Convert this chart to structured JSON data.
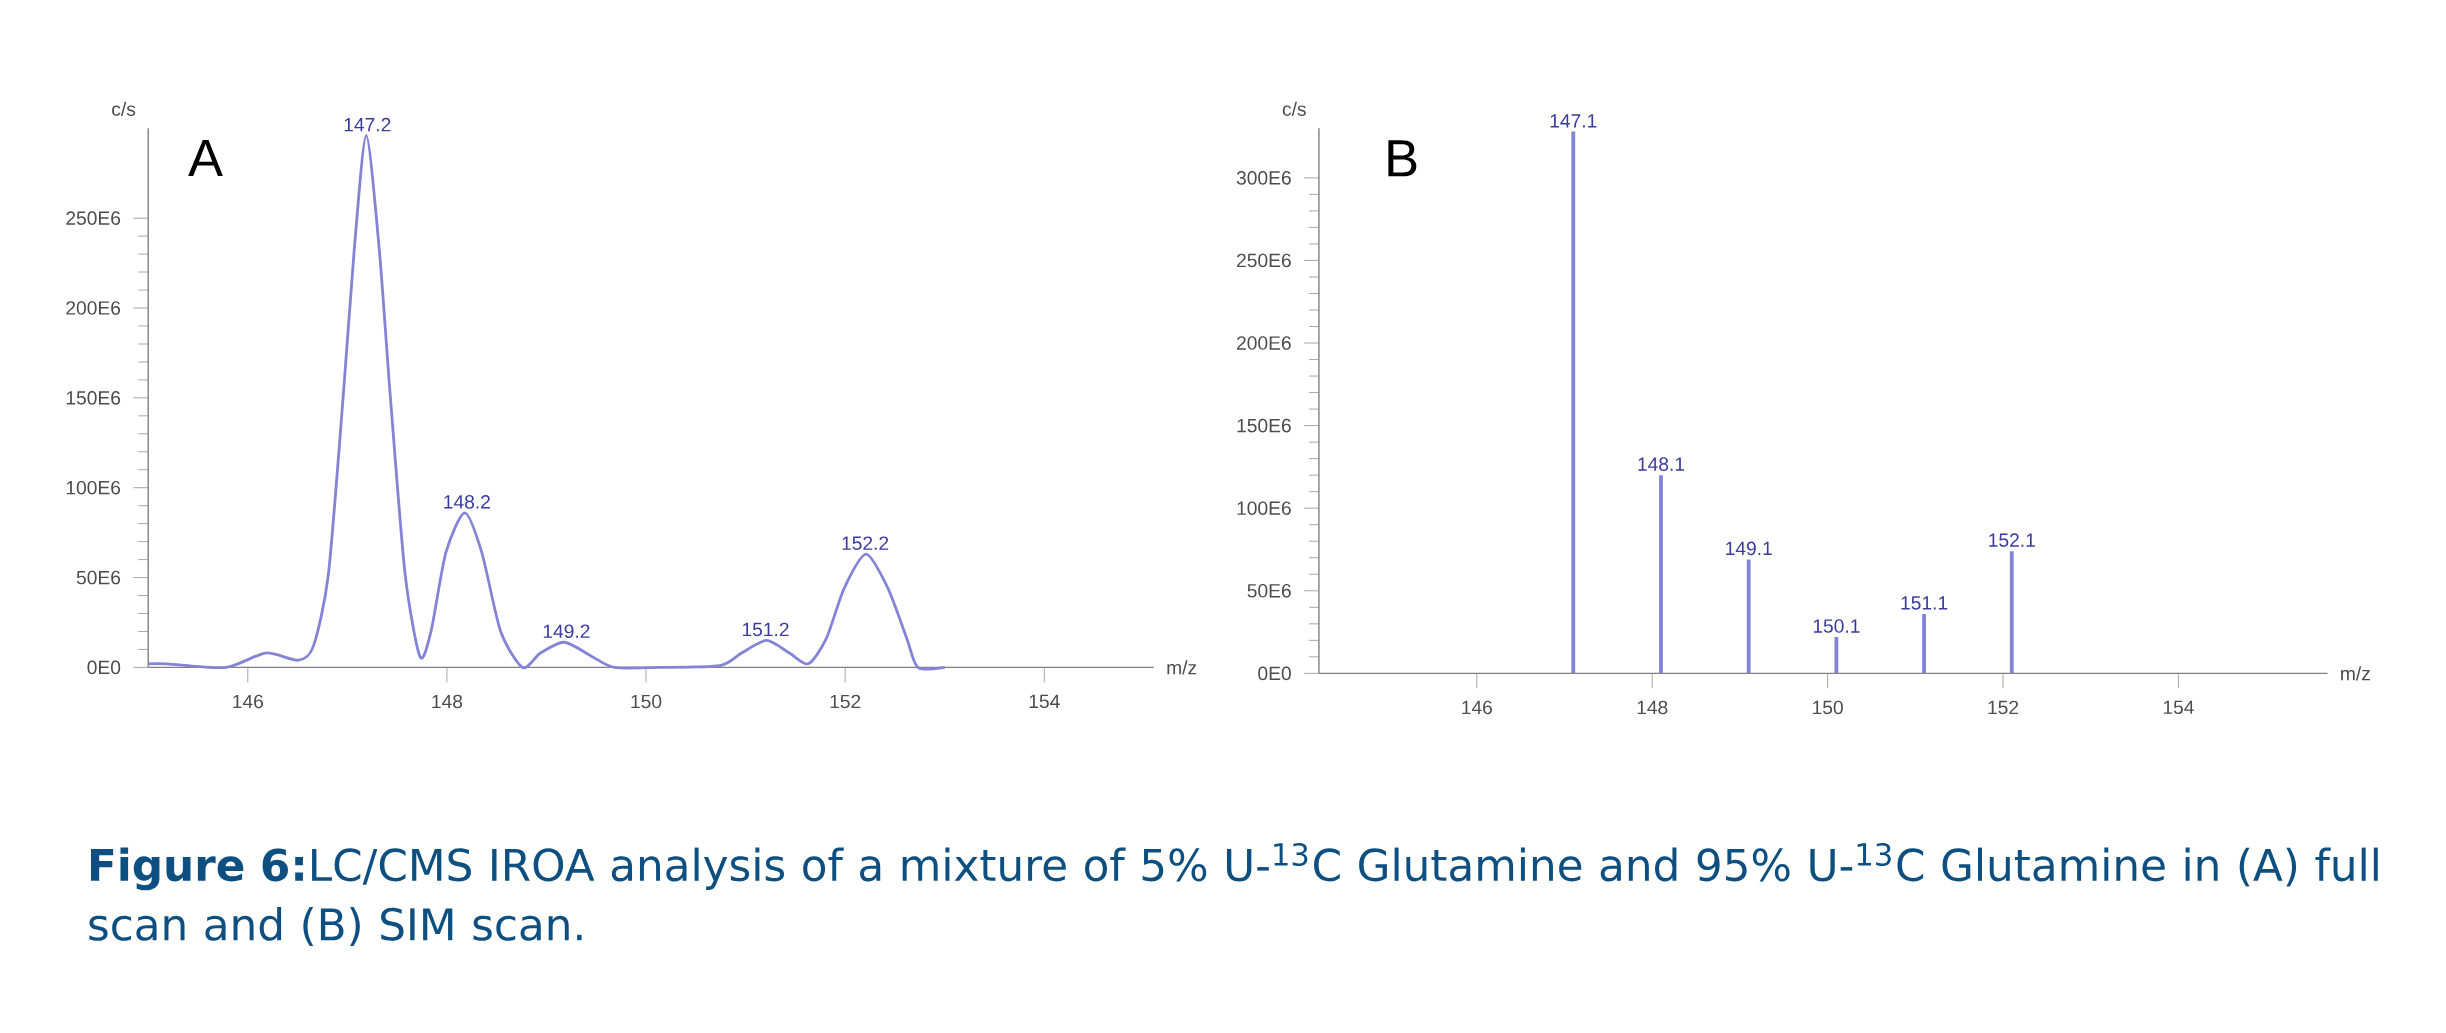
{
  "chart_data": [
    {
      "type": "line",
      "title": "A",
      "xlabel": "m/z",
      "ylabel": "c/s",
      "color": "#8484d6",
      "x": [
        145.0,
        145.19,
        145.78,
        146.18,
        146.51,
        146.66,
        146.81,
        146.96,
        147.07,
        147.19,
        147.32,
        147.43,
        147.58,
        147.73,
        147.84,
        147.99,
        148.18,
        148.35,
        148.54,
        148.76,
        148.94,
        149.18,
        149.46,
        149.68,
        150.12,
        150.74,
        150.96,
        151.21,
        151.44,
        151.63,
        151.81,
        151.99,
        152.21,
        152.43,
        152.62,
        152.73,
        153.0
      ],
      "values": [
        2000000,
        2000000,
        0,
        8000000,
        4000000,
        12000000,
        52000000,
        152000000,
        233000000,
        296000000,
        233000000,
        152000000,
        52000000,
        6000000,
        20000000,
        64000000,
        86000000,
        64000000,
        20000000,
        0,
        8000000,
        14000000,
        6000000,
        0,
        0,
        1000000,
        8000000,
        15000000,
        8000000,
        2000000,
        16000000,
        44000000,
        63000000,
        44000000,
        16000000,
        0,
        0
      ],
      "xlim": [
        145,
        155.1
      ],
      "ylim": [
        0,
        300000000
      ],
      "xticks": [
        146,
        148,
        150,
        152,
        154
      ],
      "yticks": [
        {
          "value": 0,
          "label": "0E0"
        },
        {
          "value": 50000000,
          "label": "50E6"
        },
        {
          "value": 100000000,
          "label": "100E6"
        },
        {
          "value": 150000000,
          "label": "150E6"
        },
        {
          "value": 200000000,
          "label": "200E6"
        },
        {
          "value": 250000000,
          "label": "250E6"
        }
      ],
      "annotations": [
        {
          "text": "147.2",
          "x": 147.2,
          "y": 296000000
        },
        {
          "text": "148.2",
          "x": 148.2,
          "y": 86000000
        },
        {
          "text": "149.2",
          "x": 149.2,
          "y": 14000000
        },
        {
          "text": "151.2",
          "x": 151.2,
          "y": 15000000
        },
        {
          "text": "152.2",
          "x": 152.2,
          "y": 63000000
        },
        "**Figure 6:**LC/CMS IROA analysis of a mixture of 5% U-$^{13}$C Glutamine and 95% U-$^{13}$C Glutamine in (A) full scan and (B) SIM scan."
      ]
    },
    {
      "type": "bar",
      "title": "B",
      "xlabel": "m/z",
      "ylabel": "c/s",
      "color": "#8484d6",
      "x": [
        147.1,
        148.1,
        149.1,
        150.1,
        151.1,
        152.1
      ],
      "values": [
        328000000,
        120000000,
        69000000,
        22000000,
        36000000,
        74000000
      ],
      "xlim": [
        144.2,
        155.7
      ],
      "ylim": [
        0,
        330000000
      ],
      "xticks": [
        146,
        148,
        150,
        152,
        154
      ],
      "yticks": [
        {
          "value": 0,
          "label": "0E0"
        },
        {
          "value": 50000000,
          "label": "50E6"
        },
        {
          "value": 100000000,
          "label": "100E6"
        },
        {
          "value": 150000000,
          "label": "150E6"
        },
        {
          "value": 200000000,
          "label": "200E6"
        },
        {
          "value": 250000000,
          "label": "250E6"
        },
        {
          "value": 300000000,
          "label": "300E6"
        }
      ],
      "annotations": [
        {
          "text": "147.1",
          "x": 147.1,
          "y": 328000000
        },
        {
          "text": "148.1",
          "x": 148.1,
          "y": 120000000
        },
        {
          "text": "149.1",
          "x": 149.1,
          "y": 69000000
        },
        {
          "text": "150.1",
          "x": 150.1,
          "y": 22000000
        },
        {
          "text": "151.1",
          "x": 151.1,
          "y": 36000000
        },
        {
          "text": "152.1",
          "x": 152.1,
          "y": 74000000
        }
      ]
    }
  ]
}
